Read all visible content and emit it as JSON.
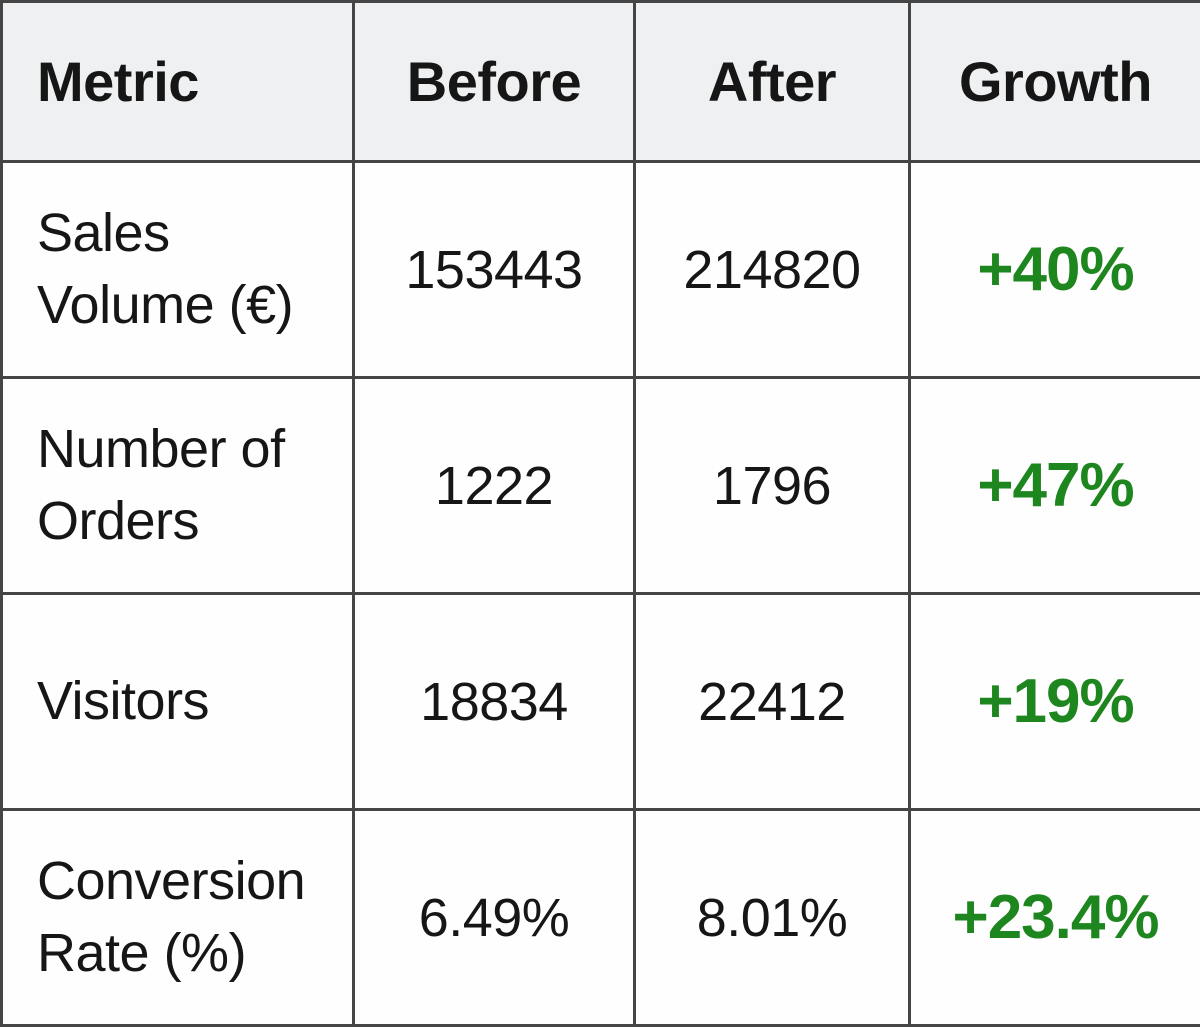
{
  "colors": {
    "growth_green": "#1e861e",
    "header_bg": "#eef0f2",
    "border": "#454545",
    "text": "#161616"
  },
  "chart_data": {
    "type": "table",
    "title": "",
    "columns": [
      "Metric",
      "Before",
      "After",
      "Growth"
    ],
    "rows": [
      {
        "metric": "Sales Volume (€)",
        "before": "153443",
        "after": "214820",
        "growth": "+40%"
      },
      {
        "metric": "Number of Orders",
        "before": "1222",
        "after": "1796",
        "growth": "+47%"
      },
      {
        "metric": "Visitors",
        "before": "18834",
        "after": "22412",
        "growth": "+19%"
      },
      {
        "metric": "Conversion Rate (%)",
        "before": "6.49%",
        "after": "8.01%",
        "growth": "+23.4%"
      }
    ]
  }
}
